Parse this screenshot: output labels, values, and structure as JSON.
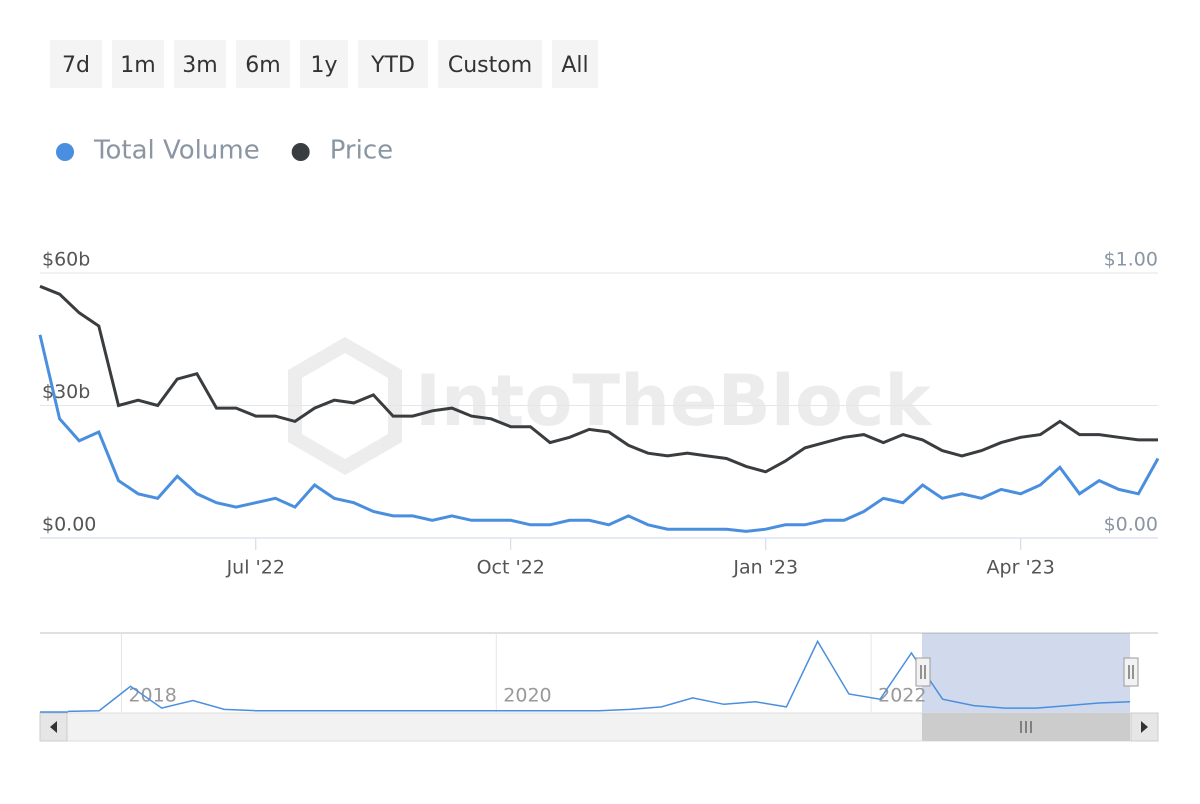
{
  "range_buttons": [
    "7d",
    "1m",
    "3m",
    "6m",
    "1y",
    "YTD",
    "Custom",
    "All"
  ],
  "watermark": "IntoTheBlock",
  "chart_data": [
    {
      "type": "line",
      "legend": "top-left",
      "grid": true,
      "categories": [
        null,
        null,
        null,
        null,
        null,
        null,
        null,
        null,
        null,
        null,
        null,
        "Jul '22",
        null,
        null,
        null,
        null,
        null,
        null,
        null,
        null,
        null,
        null,
        null,
        null,
        "Oct '22",
        null,
        null,
        null,
        null,
        null,
        null,
        null,
        null,
        null,
        null,
        null,
        null,
        "Jan '23",
        null,
        null,
        null,
        null,
        null,
        null,
        null,
        null,
        null,
        null,
        null,
        null,
        "Apr '23",
        null,
        null,
        null,
        null,
        null,
        null,
        null
      ],
      "ylim": [
        0,
        60
      ],
      "yticks": [
        {
          "value": 0,
          "label": "$0.00"
        },
        {
          "value": 30,
          "label": "$30b"
        },
        {
          "value": 60,
          "label": "$60b"
        }
      ],
      "y2lim": [
        0,
        1
      ],
      "y2ticks": [
        {
          "value": 0,
          "label": "$0.00"
        },
        {
          "value": 1,
          "label": "$1.00"
        }
      ],
      "series": [
        {
          "name": "Total Volume",
          "color": "#4a8fdf",
          "values": [
            46,
            27,
            22,
            24,
            13,
            10,
            9,
            14,
            10,
            8,
            7,
            8,
            9,
            7,
            12,
            9,
            8,
            6,
            5,
            5,
            4,
            5,
            4,
            4,
            4,
            3,
            3,
            4,
            4,
            3,
            5,
            3,
            2,
            2,
            2,
            2,
            1.5,
            2,
            3,
            3,
            4,
            4,
            6,
            9,
            8,
            12,
            9,
            10,
            9,
            11,
            10,
            12,
            16,
            10,
            13,
            11,
            10,
            18
          ]
        },
        {
          "name": "Price",
          "color": "#3a3d40",
          "axis": "y2",
          "values": [
            0.95,
            0.92,
            0.85,
            0.8,
            0.5,
            0.52,
            0.5,
            0.6,
            0.62,
            0.49,
            0.49,
            0.46,
            0.46,
            0.44,
            0.49,
            0.52,
            0.51,
            0.54,
            0.46,
            0.46,
            0.48,
            0.49,
            0.46,
            0.45,
            0.42,
            0.42,
            0.36,
            0.38,
            0.41,
            0.4,
            0.35,
            0.32,
            0.31,
            0.32,
            0.31,
            0.3,
            0.27,
            0.25,
            0.29,
            0.34,
            0.36,
            0.38,
            0.39,
            0.36,
            0.39,
            0.37,
            0.33,
            0.31,
            0.33,
            0.36,
            0.38,
            0.39,
            0.44,
            0.39,
            0.39,
            0.38,
            0.37,
            0.37
          ]
        }
      ]
    },
    {
      "type": "line",
      "categories": [
        null,
        null,
        "2018",
        null,
        null,
        null,
        null,
        null,
        null,
        null,
        null,
        null,
        null,
        null,
        "2020",
        null,
        null,
        null,
        null,
        null,
        null,
        null,
        null,
        null,
        null,
        null,
        "2022",
        null,
        null,
        null,
        null,
        null,
        null,
        null,
        null
      ],
      "ylim": [
        0,
        60
      ],
      "series": [
        {
          "color": "#4a8fdf",
          "values": [
            0.5,
            1,
            20,
            3,
            9,
            2,
            1,
            1,
            1,
            1,
            1,
            1,
            1,
            1,
            1,
            1,
            1,
            1,
            2,
            4,
            11,
            6,
            8,
            4,
            55,
            14,
            10,
            46,
            10,
            5,
            3,
            3,
            5,
            7,
            8
          ]
        }
      ]
    }
  ]
}
